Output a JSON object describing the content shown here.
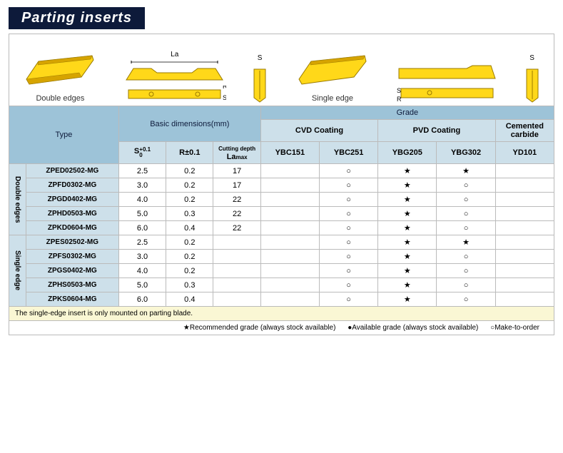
{
  "title": "Parting inserts",
  "diagrams": {
    "double_label": "Double edges",
    "single_label": "Single edge",
    "la_label": "La",
    "s_label": "S",
    "r_label": "R"
  },
  "headers": {
    "type": "Type",
    "basic_dims": "Basic dimensions(mm)",
    "grade": "Grade",
    "cvd": "CVD Coating",
    "pvd": "PVD Coating",
    "cemented": "Cemented carbide",
    "s_tol": "+0.1",
    "s_tol2": "0",
    "s_base": "S",
    "r_base": "R",
    "r_tol": "±0.1",
    "cut_depth1": "Cutting  depth",
    "la_base": "La",
    "la_sub": "max"
  },
  "grades": [
    "YBC151",
    "YBC251",
    "YBG205",
    "YBG302",
    "YD101"
  ],
  "groups": [
    {
      "label": "Double edges",
      "rows": [
        {
          "name": "ZPED02502-MG",
          "s": "2.5",
          "r": "0.2",
          "la": "17",
          "marks": [
            "",
            "○",
            "★",
            "★",
            ""
          ]
        },
        {
          "name": "ZPFD0302-MG",
          "s": "3.0",
          "r": "0.2",
          "la": "17",
          "marks": [
            "",
            "○",
            "★",
            "○",
            ""
          ]
        },
        {
          "name": "ZPGD0402-MG",
          "s": "4.0",
          "r": "0.2",
          "la": "22",
          "marks": [
            "",
            "○",
            "★",
            "○",
            ""
          ]
        },
        {
          "name": "ZPHD0503-MG",
          "s": "5.0",
          "r": "0.3",
          "la": "22",
          "marks": [
            "",
            "○",
            "★",
            "○",
            ""
          ]
        },
        {
          "name": "ZPKD0604-MG",
          "s": "6.0",
          "r": "0.4",
          "la": "22",
          "marks": [
            "",
            "○",
            "★",
            "○",
            ""
          ]
        }
      ]
    },
    {
      "label": "Single edge",
      "rows": [
        {
          "name": "ZPES02502-MG",
          "s": "2.5",
          "r": "0.2",
          "la": "",
          "marks": [
            "",
            "○",
            "★",
            "★",
            ""
          ]
        },
        {
          "name": "ZPFS0302-MG",
          "s": "3.0",
          "r": "0.2",
          "la": "",
          "marks": [
            "",
            "○",
            "★",
            "○",
            ""
          ]
        },
        {
          "name": "ZPGS0402-MG",
          "s": "4.0",
          "r": "0.2",
          "la": "",
          "marks": [
            "",
            "○",
            "★",
            "○",
            ""
          ]
        },
        {
          "name": "ZPHS0503-MG",
          "s": "5.0",
          "r": "0.3",
          "la": "",
          "marks": [
            "",
            "○",
            "★",
            "○",
            ""
          ]
        },
        {
          "name": "ZPKS0604-MG",
          "s": "6.0",
          "r": "0.4",
          "la": "",
          "marks": [
            "",
            "○",
            "★",
            "○",
            ""
          ]
        }
      ]
    }
  ],
  "note": "The single-edge insert is only mounted on parting blade.",
  "legend": {
    "rec": "★Recommended grade (always stock available)",
    "avail": "●Available grade (always stock available)",
    "mto": "○Make-to-order"
  },
  "colors": {
    "insert_fill": "#ffd819",
    "insert_stroke": "#9a7a00",
    "insert_shade": "#d6a400"
  }
}
